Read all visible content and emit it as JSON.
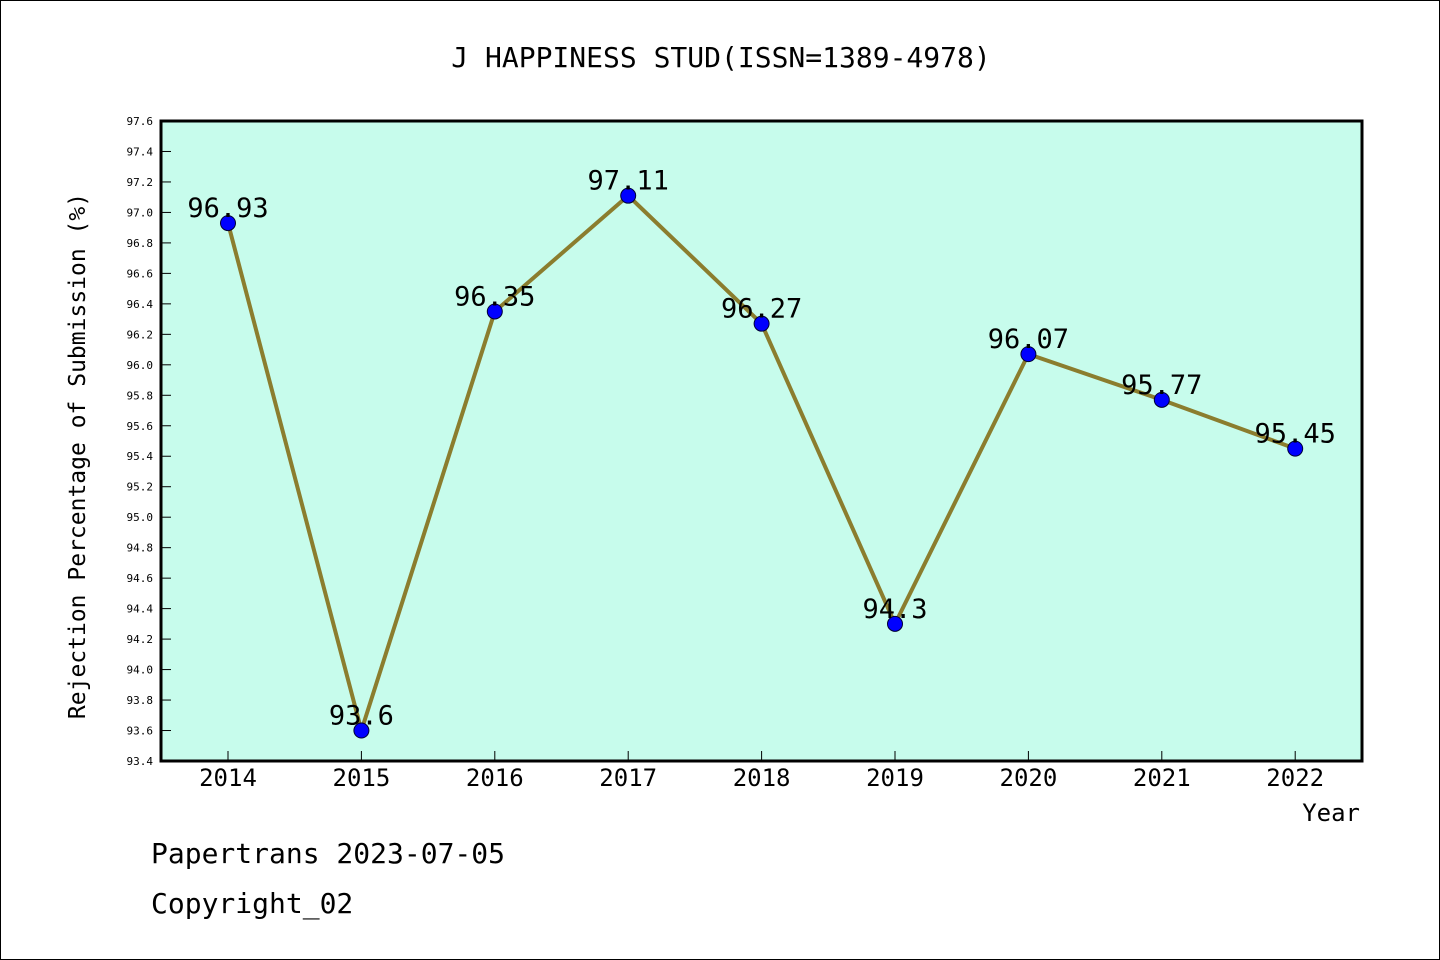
{
  "chart_data": {
    "type": "line",
    "title": "J HAPPINESS STUD(ISSN=1389-4978)",
    "xlabel": "Year",
    "ylabel": "Rejection Percentage of Submission (%)",
    "categories": [
      "2014",
      "2015",
      "2016",
      "2017",
      "2018",
      "2019",
      "2020",
      "2021",
      "2022"
    ],
    "series": [
      {
        "values": [
          96.93,
          93.6,
          96.35,
          97.11,
          96.27,
          94.3,
          96.07,
          95.77,
          95.45
        ],
        "data_labels": [
          "96.93",
          "93.6",
          "96.35",
          "97.11",
          "96.27",
          "94.3",
          "96.07",
          "95.77",
          "95.45"
        ]
      }
    ],
    "ylim": [
      93.4,
      97.6
    ],
    "yticks": [
      "93.4",
      "93.6",
      "93.8",
      "94.0",
      "94.2",
      "94.4",
      "94.6",
      "94.8",
      "95.0",
      "95.2",
      "95.4",
      "95.6",
      "95.8",
      "96.0",
      "96.2",
      "96.4",
      "96.6",
      "96.8",
      "97.0",
      "97.2",
      "97.4",
      "97.6"
    ],
    "grid": false,
    "colors": {
      "plot_background": "#c7fcec",
      "line": "#8b7d2e",
      "marker": "#0000ff"
    }
  },
  "footer": {
    "date_line": "Papertrans 2023-07-05",
    "copyright": "Copyright_02"
  }
}
